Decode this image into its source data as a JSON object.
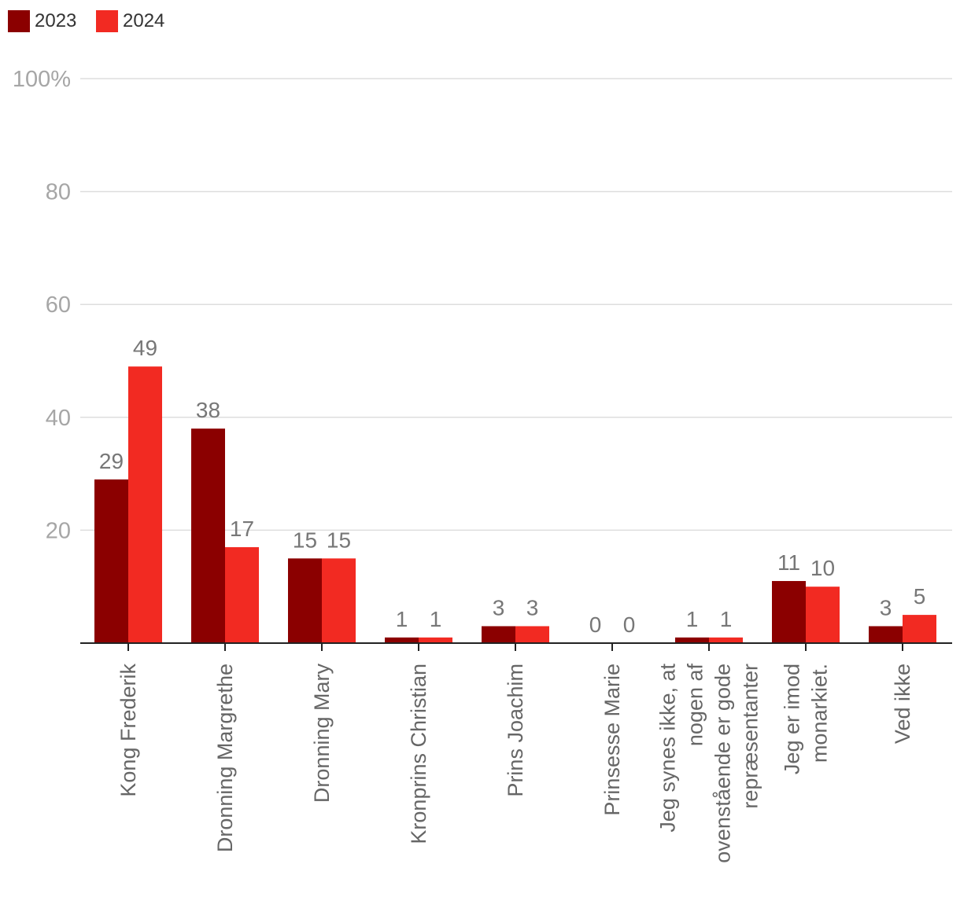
{
  "chart_data": {
    "type": "bar",
    "categories": [
      [
        "Kong Frederik"
      ],
      [
        "Dronning Margrethe"
      ],
      [
        "Dronning Mary"
      ],
      [
        "Kronprins Christian"
      ],
      [
        "Prins Joachim"
      ],
      [
        "Prinsesse Marie"
      ],
      [
        "Jeg synes ikke, at",
        "nogen af",
        "ovenstående er gode",
        "repræsentanter"
      ],
      [
        "Jeg er imod",
        "monarkiet."
      ],
      [
        "Ved ikke"
      ]
    ],
    "series": [
      {
        "name": "2023",
        "color": "#8b0000",
        "values": [
          29,
          38,
          15,
          1,
          3,
          0,
          1,
          11,
          3
        ]
      },
      {
        "name": "2024",
        "color": "#f22a22",
        "values": [
          49,
          17,
          15,
          1,
          3,
          0,
          1,
          10,
          5
        ]
      }
    ],
    "yticks": [
      {
        "value": 100,
        "label": "100%"
      },
      {
        "value": 80,
        "label": "80"
      },
      {
        "value": 60,
        "label": "60"
      },
      {
        "value": 40,
        "label": "40"
      },
      {
        "value": 20,
        "label": "20"
      }
    ],
    "ylim": [
      0,
      100
    ],
    "title": "",
    "xlabel": "",
    "ylabel": "",
    "legend_position": "top-left"
  }
}
